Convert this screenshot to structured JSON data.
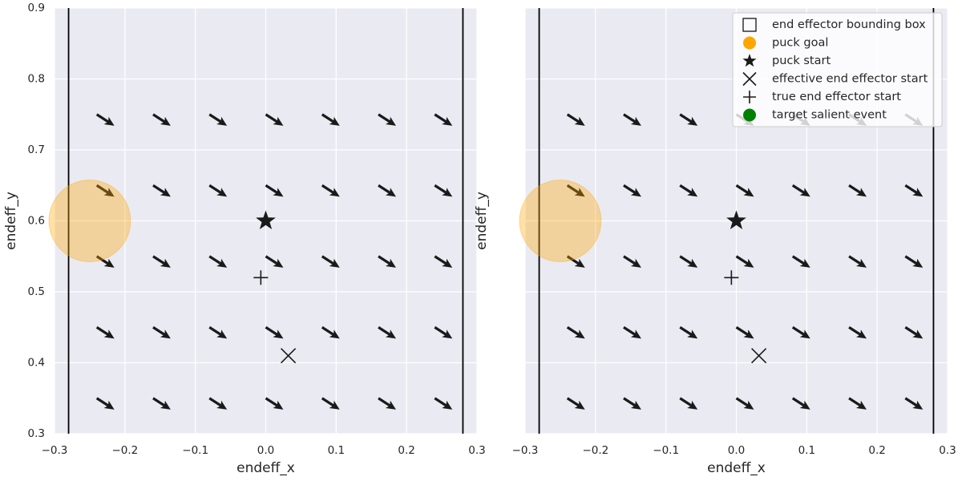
{
  "chart_data": [
    {
      "type": "quiver",
      "xlabel": "endeff_x",
      "ylabel": "endeff_y",
      "xlim": [
        -0.3,
        0.3
      ],
      "ylim": [
        0.3,
        0.9
      ],
      "xticks": [
        {
          "value": -0.3,
          "label": "−0.3"
        },
        {
          "value": -0.2,
          "label": "−0.2"
        },
        {
          "value": -0.1,
          "label": "−0.1"
        },
        {
          "value": 0,
          "label": "0.0"
        },
        0.1,
        0.2,
        0.3
      ],
      "yticks": [
        0.3,
        0.4,
        0.5,
        0.6,
        0.7,
        0.8,
        0.9
      ],
      "ytick_labels": true,
      "grid": true,
      "grid_x": [
        -0.24,
        -0.16,
        -0.08,
        0,
        0.08,
        0.16,
        0.24
      ],
      "grid_y": [
        0.35,
        0.45,
        0.55,
        0.65,
        0.75
      ],
      "u": 0.025,
      "v": -0.016,
      "arrow_color": "#1a1a1a",
      "bbox_x": [
        -0.28,
        0.28
      ],
      "bbox_color": "#000000",
      "puck_goal": {
        "x": -0.25,
        "y": 0.6,
        "radius": 0.058,
        "color": "#ffa500"
      },
      "puck_start": {
        "x": 0,
        "y": 0.6
      },
      "effective_start": {
        "x": 0.032,
        "y": 0.41
      },
      "true_start": {
        "x": -0.007,
        "y": 0.52
      },
      "marker_color": "#1a1a1a"
    },
    {
      "type": "quiver",
      "xlabel": "endeff_x",
      "ylabel": "endeff_y",
      "xlim": [
        -0.3,
        0.3
      ],
      "ylim": [
        0.3,
        0.9
      ],
      "xticks": [
        {
          "value": -0.3,
          "label": "−0.3"
        },
        {
          "value": -0.2,
          "label": "−0.2"
        },
        {
          "value": -0.1,
          "label": "−0.1"
        },
        {
          "value": 0,
          "label": "0.0"
        },
        0.1,
        0.2,
        0.3
      ],
      "yticks": [
        0.3,
        0.4,
        0.5,
        0.6,
        0.7,
        0.8,
        0.9
      ],
      "ytick_labels": false,
      "grid": true,
      "grid_x": [
        -0.24,
        -0.16,
        -0.08,
        0,
        0.08,
        0.16,
        0.24
      ],
      "grid_y": [
        0.35,
        0.45,
        0.55,
        0.65,
        0.75
      ],
      "u": 0.025,
      "v": -0.016,
      "arrow_color": "#1a1a1a",
      "bbox_x": [
        -0.28,
        0.28
      ],
      "bbox_color": "#000000",
      "puck_goal": {
        "x": -0.25,
        "y": 0.6,
        "radius": 0.058,
        "color": "#ffa500"
      },
      "puck_start": {
        "x": 0,
        "y": 0.6
      },
      "effective_start": {
        "x": 0.032,
        "y": 0.41
      },
      "true_start": {
        "x": -0.007,
        "y": 0.52
      },
      "marker_color": "#1a1a1a",
      "legend": {
        "position": "upper right",
        "entries": [
          {
            "name": "end effector bounding box",
            "marker": "square",
            "color": "#000000"
          },
          {
            "name": "puck goal",
            "marker": "circle",
            "color": "#ffa500"
          },
          {
            "name": "puck start",
            "marker": "star",
            "color": "#1a1a1a"
          },
          {
            "name": "effective end effector start",
            "marker": "x",
            "color": "#1a1a1a"
          },
          {
            "name": "true end effector start",
            "marker": "plus",
            "color": "#1a1a1a"
          },
          {
            "name": "target salient event",
            "marker": "circle",
            "color": "#008000"
          }
        ]
      }
    }
  ]
}
